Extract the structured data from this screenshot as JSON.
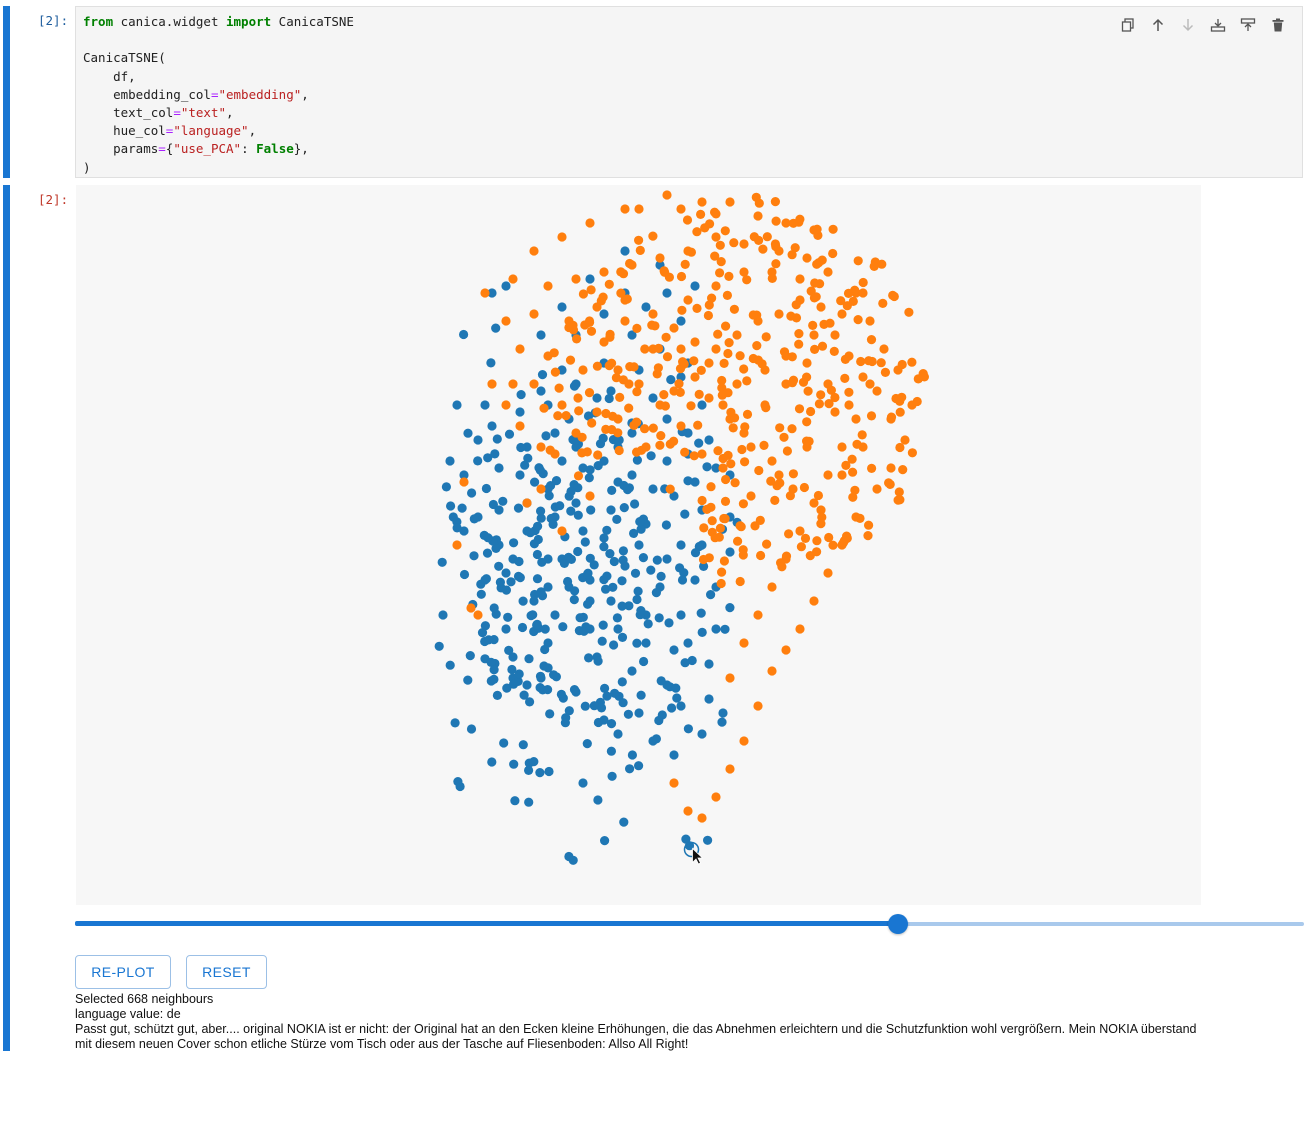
{
  "code_cell": {
    "prompt": "[2]:",
    "lines": [
      [
        [
          "kw",
          "from"
        ],
        [
          "t",
          " canica.widget "
        ],
        [
          "kw",
          "import"
        ],
        [
          "t",
          " CanicaTSNE"
        ]
      ],
      [],
      [
        [
          "t",
          "CanicaTSNE("
        ]
      ],
      [
        [
          "t",
          "    df,"
        ]
      ],
      [
        [
          "t",
          "    embedding_col"
        ],
        [
          "op",
          "="
        ],
        [
          "str",
          "\"embedding\""
        ],
        [
          "t",
          ","
        ]
      ],
      [
        [
          "t",
          "    text_col"
        ],
        [
          "op",
          "="
        ],
        [
          "str",
          "\"text\""
        ],
        [
          "t",
          ","
        ]
      ],
      [
        [
          "t",
          "    hue_col"
        ],
        [
          "op",
          "="
        ],
        [
          "str",
          "\"language\""
        ],
        [
          "t",
          ","
        ]
      ],
      [
        [
          "t",
          "    params"
        ],
        [
          "op",
          "="
        ],
        [
          "t",
          "{"
        ],
        [
          "str",
          "\"use_PCA\""
        ],
        [
          "t",
          ": "
        ],
        [
          "kw",
          "False"
        ],
        [
          "t",
          "},"
        ]
      ],
      [
        [
          "t",
          ")"
        ]
      ]
    ],
    "toolbar": [
      "duplicate-icon",
      "move-up-icon",
      "move-down-icon",
      "insert-above-icon",
      "insert-below-icon",
      "delete-icon"
    ]
  },
  "output_cell": {
    "prompt": "[2]:",
    "slider_value": 0.67,
    "buttons": {
      "replot": "RE-PLOT",
      "reset": "RESET"
    },
    "info": {
      "selected": "Selected 668 neighbours",
      "language": "language value: de",
      "text_line1": "Passt gut, schützt gut, aber.... original NOKIA ist er nicht: der Original hat an den Ecken kleine Erhöhungen, die das Abnehmen erleichtern und die Schutzfunktion wohl vergrößern. Mein NOKIA überstand",
      "text_line2": "mit diesem neuen Cover schon etliche Stürze vom Tisch oder aus der Tasche auf Fliesenboden: Allso All Right!"
    }
  },
  "colors": {
    "accent": "#1976d2",
    "series_en": "#1f77b4",
    "series_de": "#ff7f0e"
  },
  "chart_data": {
    "type": "scatter",
    "title": "",
    "xlabel": "",
    "ylabel": "",
    "grid": false,
    "legend": "none",
    "xlim": [
      0,
      100
    ],
    "ylim": [
      0,
      100
    ],
    "series": [
      {
        "color": "#1f77b4",
        "cluster_center": [
          39,
          42
        ],
        "cluster_spread": [
          14,
          22
        ],
        "points": [
          [
            28,
            86
          ],
          [
            30,
            87
          ],
          [
            23,
            70
          ],
          [
            27,
            70
          ],
          [
            22,
            62
          ],
          [
            24,
            52
          ],
          [
            21,
            40
          ],
          [
            29,
            50
          ],
          [
            36,
            44
          ],
          [
            40,
            56
          ],
          [
            44,
            51
          ],
          [
            46,
            59
          ],
          [
            38,
            62
          ],
          [
            33,
            30
          ],
          [
            31,
            31
          ],
          [
            44,
            25
          ],
          [
            41,
            16
          ],
          [
            49,
            26
          ],
          [
            54,
            20
          ],
          [
            58,
            23
          ],
          [
            55,
            50
          ],
          [
            58,
            55
          ],
          [
            62,
            49
          ],
          [
            60,
            44
          ],
          [
            56,
            36
          ],
          [
            50,
            36
          ],
          [
            45,
            42
          ],
          [
            42,
            38
          ],
          [
            36,
            36
          ],
          [
            30,
            38
          ],
          [
            27,
            45
          ],
          [
            33,
            52
          ],
          [
            38,
            48
          ],
          [
            42,
            45
          ],
          [
            47,
            47
          ],
          [
            52,
            44
          ],
          [
            55,
            40
          ],
          [
            50,
            53
          ],
          [
            57,
            59
          ],
          [
            53,
            62
          ],
          [
            48,
            66
          ],
          [
            43,
            71
          ],
          [
            39,
            68
          ],
          [
            44,
            76
          ],
          [
            48,
            80
          ],
          [
            52,
            78
          ],
          [
            55,
            74
          ],
          [
            58,
            70
          ],
          [
            51,
            71
          ],
          [
            46,
            64
          ],
          [
            41,
            61
          ],
          [
            36,
            58
          ],
          [
            32,
            60
          ],
          [
            29,
            55
          ],
          [
            35,
            72
          ],
          [
            40,
            80
          ],
          [
            44,
            83
          ],
          [
            50,
            84
          ],
          [
            55,
            82
          ],
          [
            57,
            87
          ],
          [
            52,
            90
          ],
          [
            47,
            92
          ],
          [
            42,
            88
          ],
          [
            38,
            75
          ],
          [
            33,
            64
          ],
          [
            30,
            46
          ],
          [
            24,
            60
          ],
          [
            26,
            54
          ],
          [
            31,
            48
          ],
          [
            37,
            40
          ],
          [
            43,
            34
          ],
          [
            48,
            32
          ],
          [
            53,
            30
          ],
          [
            59,
            33
          ],
          [
            60,
            38
          ],
          [
            57,
            45
          ],
          [
            53,
            48
          ],
          [
            49,
            50
          ],
          [
            45,
            55
          ],
          [
            41,
            52
          ],
          [
            37,
            54
          ],
          [
            34,
            42
          ],
          [
            31,
            34
          ],
          [
            35,
            31
          ],
          [
            40,
            29
          ],
          [
            46,
            23
          ],
          [
            51,
            22
          ],
          [
            55,
            27
          ],
          [
            59,
            28
          ],
          [
            61,
            26
          ],
          [
            62,
            60
          ],
          [
            59,
            65
          ],
          [
            56,
            66
          ],
          [
            54,
            57
          ],
          [
            51,
            58
          ],
          [
            48,
            60
          ],
          [
            44,
            62
          ],
          [
            40,
            64
          ],
          [
            37,
            66
          ],
          [
            35,
            80
          ],
          [
            38,
            84
          ],
          [
            47,
            86
          ],
          [
            53,
            86
          ],
          [
            56,
            76
          ],
          [
            60,
            61
          ],
          [
            62,
            54
          ],
          [
            58,
            50
          ],
          [
            54,
            35
          ],
          [
            50,
            40
          ],
          [
            46,
            38
          ],
          [
            42,
            42
          ],
          [
            39,
            44
          ],
          [
            36,
            48
          ],
          [
            33,
            56
          ],
          [
            29,
            61
          ],
          [
            26,
            65
          ],
          [
            28,
            67
          ],
          [
            32,
            69
          ],
          [
            36,
            70
          ],
          [
            40,
            73
          ],
          [
            45,
            72
          ],
          [
            49,
            75
          ],
          [
            53,
            68
          ],
          [
            56,
            63
          ]
        ]
      },
      {
        "color": "#ff7f0e",
        "cluster_center": [
          63,
          72
        ],
        "cluster_spread": [
          16,
          22
        ],
        "points": [
          [
            47,
            98
          ],
          [
            49,
            98
          ],
          [
            53,
            100
          ],
          [
            55,
            98
          ],
          [
            58,
            99
          ],
          [
            62,
            99
          ],
          [
            66,
            97
          ],
          [
            70,
            96
          ],
          [
            74,
            95
          ],
          [
            73,
            91
          ],
          [
            69,
            92
          ],
          [
            64,
            93
          ],
          [
            60,
            94
          ],
          [
            56,
            92
          ],
          [
            52,
            91
          ],
          [
            48,
            90
          ],
          [
            44,
            89
          ],
          [
            40,
            88
          ],
          [
            36,
            87
          ],
          [
            34,
            83
          ],
          [
            32,
            78
          ],
          [
            31,
            73
          ],
          [
            32,
            67
          ],
          [
            35,
            64
          ],
          [
            38,
            70
          ],
          [
            41,
            75
          ],
          [
            44,
            79
          ],
          [
            47,
            82
          ],
          [
            51,
            83
          ],
          [
            54,
            81
          ],
          [
            57,
            79
          ],
          [
            60,
            78
          ],
          [
            63,
            80
          ],
          [
            66,
            82
          ],
          [
            69,
            83
          ],
          [
            72,
            85
          ],
          [
            75,
            84
          ],
          [
            77,
            80
          ],
          [
            79,
            77
          ],
          [
            81,
            74
          ],
          [
            83,
            72
          ],
          [
            85,
            68
          ],
          [
            87,
            65
          ],
          [
            85,
            61
          ],
          [
            83,
            58
          ],
          [
            80,
            54
          ],
          [
            78,
            50
          ],
          [
            76,
            46
          ],
          [
            74,
            42
          ],
          [
            72,
            38
          ],
          [
            70,
            35
          ],
          [
            68,
            32
          ],
          [
            66,
            27
          ],
          [
            64,
            22
          ],
          [
            62,
            18
          ],
          [
            60,
            14
          ],
          [
            58,
            11
          ],
          [
            56,
            12
          ],
          [
            54,
            16
          ],
          [
            62,
            31
          ],
          [
            64,
            36
          ],
          [
            66,
            40
          ],
          [
            68,
            44
          ],
          [
            70,
            48
          ],
          [
            72,
            52
          ],
          [
            74,
            56
          ],
          [
            76,
            60
          ],
          [
            78,
            64
          ],
          [
            80,
            68
          ],
          [
            82,
            73
          ],
          [
            77,
            69
          ],
          [
            73,
            64
          ],
          [
            69,
            60
          ],
          [
            65,
            57
          ],
          [
            61,
            61
          ],
          [
            58,
            63
          ],
          [
            55,
            67
          ],
          [
            52,
            70
          ],
          [
            49,
            73
          ],
          [
            46,
            75
          ],
          [
            43,
            69
          ],
          [
            40,
            66
          ],
          [
            37,
            63
          ],
          [
            35,
            58
          ],
          [
            33,
            56
          ],
          [
            30,
            70
          ],
          [
            28,
            73
          ],
          [
            24,
            59
          ],
          [
            23,
            50
          ],
          [
            26,
            40
          ],
          [
            25,
            41
          ],
          [
            38,
            52
          ],
          [
            42,
            57
          ],
          [
            46,
            68
          ],
          [
            50,
            64
          ],
          [
            54,
            72
          ],
          [
            57,
            74
          ],
          [
            61,
            70
          ],
          [
            64,
            66
          ],
          [
            67,
            70
          ],
          [
            70,
            73
          ],
          [
            73,
            76
          ],
          [
            76,
            73
          ],
          [
            79,
            70
          ],
          [
            81,
            64
          ],
          [
            78,
            60
          ],
          [
            75,
            55
          ],
          [
            71,
            58
          ],
          [
            68,
            62
          ],
          [
            65,
            64
          ],
          [
            62,
            68
          ],
          [
            59,
            71
          ],
          [
            56,
            85
          ],
          [
            60,
            87
          ],
          [
            64,
            89
          ],
          [
            68,
            89
          ],
          [
            72,
            88
          ],
          [
            76,
            89
          ],
          [
            80,
            86
          ],
          [
            82,
            82
          ],
          [
            84,
            78
          ],
          [
            86,
            75
          ],
          [
            88,
            70
          ],
          [
            81,
            86
          ],
          [
            78,
            83
          ],
          [
            74,
            80
          ],
          [
            70,
            77
          ],
          [
            67,
            75
          ],
          [
            63,
            73
          ],
          [
            59,
            76
          ],
          [
            55,
            78
          ],
          [
            51,
            78
          ],
          [
            47,
            85
          ],
          [
            43,
            84
          ],
          [
            39,
            82
          ],
          [
            36,
            77
          ],
          [
            34,
            73
          ],
          [
            30,
            82
          ],
          [
            27,
            86
          ],
          [
            31,
            88
          ],
          [
            34,
            92
          ],
          [
            38,
            94
          ],
          [
            42,
            96
          ]
        ]
      }
    ],
    "cursor_point": [
      56.5,
      6.5
    ]
  }
}
